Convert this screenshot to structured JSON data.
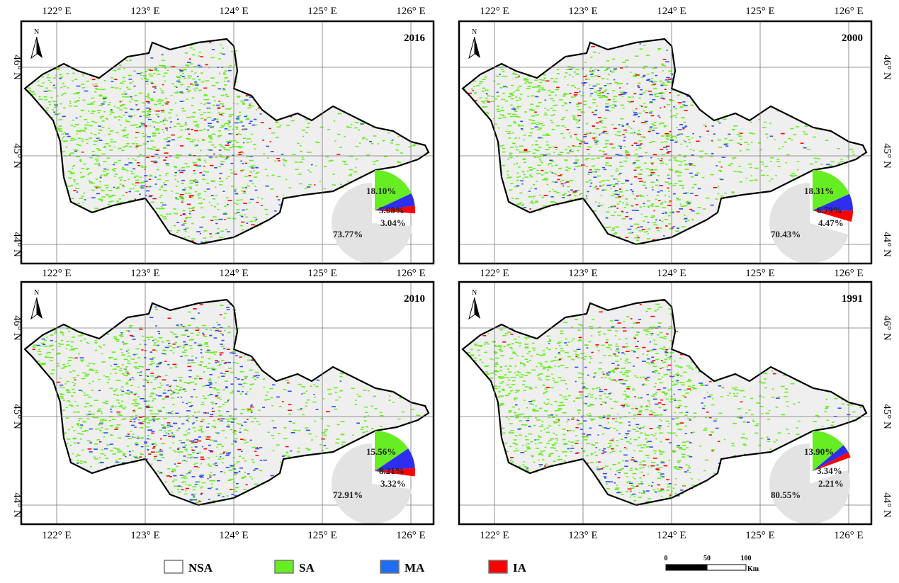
{
  "legend": [
    {
      "label": "NSA",
      "color": "#ffffff"
    },
    {
      "label": "SA",
      "color": "#66ee22"
    },
    {
      "label": "MA",
      "color": "#1e6ef5"
    },
    {
      "label": "IA",
      "color": "#ff0000"
    }
  ],
  "colors": {
    "NSA_pie": "#e3e3e3",
    "SA": "#66ee22",
    "MA": "#2e2ef0",
    "IA": "#ff0000",
    "background": "#efefef"
  },
  "longitude_labels": [
    "122° E",
    "123° E",
    "124° E",
    "125° E",
    "126° E"
  ],
  "latitude_labels": [
    "46° N",
    "45° N",
    "44° N"
  ],
  "north_label": "N",
  "scale_bar": {
    "ticks": [
      "0",
      "50",
      "100"
    ],
    "unit": "Km"
  },
  "panels": [
    {
      "year": "2016",
      "pie": {
        "SA": 18.1,
        "MA": 5.08,
        "IA": 3.04,
        "NSA": 73.77
      },
      "labels": {
        "SA": "18.10%",
        "MA": "5.08%",
        "IA": "3.04%",
        "NSA": "73.77%"
      }
    },
    {
      "year": "2000",
      "pie": {
        "SA": 18.31,
        "MA": 6.79,
        "IA": 4.47,
        "NSA": 70.43
      },
      "labels": {
        "SA": "18.31%",
        "MA": "6.79%",
        "IA": "4.47%",
        "NSA": "70.43%"
      }
    },
    {
      "year": "2010",
      "pie": {
        "SA": 15.56,
        "MA": 8.21,
        "IA": 3.32,
        "NSA": 72.91
      },
      "labels": {
        "SA": "15.56%",
        "MA": "8.21%",
        "IA": "3.32%",
        "NSA": "72.91%"
      }
    },
    {
      "year": "1991",
      "pie": {
        "SA": 13.9,
        "MA": 3.34,
        "IA": 2.21,
        "NSA": 80.55
      },
      "labels": {
        "SA": "13.90%",
        "MA": "3.34%",
        "IA": "2.21%",
        "NSA": "80.55%"
      }
    }
  ]
}
